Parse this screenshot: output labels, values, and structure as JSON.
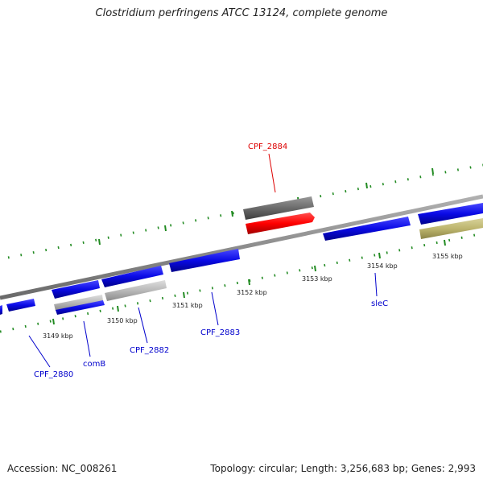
{
  "title": "Clostridium perfringens ATCC 13124, complete genome",
  "footer": {
    "accession": "Accession: NC_008261",
    "summary": "Topology: circular; Length: 3,256,683 bp; Genes: 2,993"
  },
  "colors": {
    "backbone": "#8c8c8c",
    "cds_blue": "#0a0ae6",
    "rna_gray_dark": "#6b6b6b",
    "rna_gray_light": "#b8b8b8",
    "highlight_red": "#ff0000",
    "olive": "#bdb56e",
    "tick_green": "#228b22",
    "label_blue": "#0000cc",
    "label_red": "#dd0000"
  },
  "ticks": [
    {
      "label": "3149 kbp"
    },
    {
      "label": "3150 kbp"
    },
    {
      "label": "3151 kbp"
    },
    {
      "label": "3152 kbp"
    },
    {
      "label": "3153 kbp"
    },
    {
      "label": "3154 kbp"
    },
    {
      "label": "3155 kbp"
    }
  ],
  "gene_labels": [
    {
      "name": "CPF_2884",
      "color": "red"
    },
    {
      "name": "sleC",
      "color": "blue"
    },
    {
      "name": "CPF_2883",
      "color": "blue"
    },
    {
      "name": "CPF_2882",
      "color": "blue"
    },
    {
      "name": "comB",
      "color": "blue"
    },
    {
      "name": "CPF_2880",
      "color": "blue"
    }
  ]
}
